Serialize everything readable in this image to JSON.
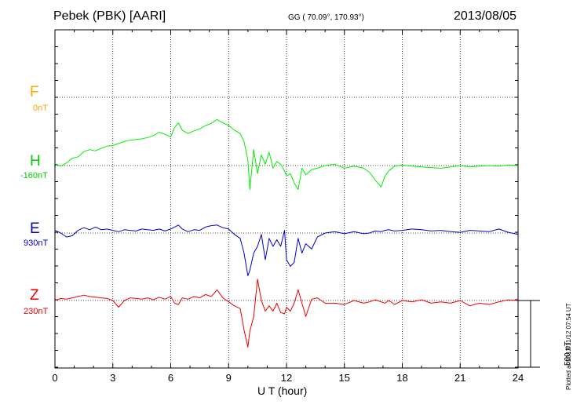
{
  "header": {
    "station": "Pebek (PBK)  [AARI]",
    "coords": "GG ( 70.09°, 170.93°)",
    "date": "2013/08/05"
  },
  "footer": {
    "plotted": "Plotted at 2013/11/12 07:54 UT",
    "scale_label": "500 nT"
  },
  "chart_data": {
    "type": "line",
    "xlabel": "U T (hour)",
    "xlim": [
      0,
      24
    ],
    "xticks": [
      0,
      3,
      6,
      9,
      12,
      15,
      18,
      21,
      24
    ],
    "grid": true,
    "scale_bar_nT": 500,
    "series": [
      {
        "name": "F",
        "baseline": "0nT",
        "color": "#ffa500",
        "values": []
      },
      {
        "name": "H",
        "baseline": "-160nT",
        "color": "#00ee00",
        "x": [
          0,
          0.3,
          0.6,
          0.9,
          1.2,
          1.5,
          1.8,
          2.1,
          2.4,
          2.7,
          3,
          3.3,
          3.6,
          3.9,
          4.2,
          4.5,
          4.8,
          5.1,
          5.4,
          5.7,
          6,
          6.2,
          6.4,
          6.6,
          6.9,
          7.2,
          7.5,
          7.8,
          8.1,
          8.4,
          8.7,
          9,
          9.3,
          9.6,
          9.8,
          10,
          10.1,
          10.3,
          10.5,
          10.7,
          10.9,
          11.1,
          11.3,
          11.5,
          11.7,
          11.9,
          12,
          12.2,
          12.4,
          12.6,
          12.8,
          13,
          13.3,
          13.6,
          14,
          14.5,
          15,
          15.5,
          16,
          16.3,
          16.6,
          16.9,
          17.1,
          17.3,
          17.6,
          18,
          18.5,
          19,
          19.5,
          20,
          20.5,
          21,
          21.5,
          22,
          22.5,
          23,
          23.5,
          24
        ],
        "values": [
          15,
          -5,
          20,
          55,
          65,
          105,
          120,
          110,
          130,
          145,
          150,
          165,
          180,
          190,
          195,
          200,
          210,
          225,
          250,
          235,
          215,
          285,
          320,
          265,
          240,
          260,
          275,
          300,
          315,
          345,
          320,
          300,
          265,
          240,
          180,
          40,
          -180,
          120,
          -60,
          80,
          10,
          100,
          -20,
          30,
          10,
          -40,
          -80,
          -60,
          -130,
          -180,
          -20,
          -70,
          -30,
          -20,
          0,
          10,
          -20,
          -5,
          -20,
          -50,
          -110,
          -160,
          -80,
          -40,
          -5,
          5,
          -5,
          -10,
          -15,
          -20,
          -10,
          0,
          -10,
          -5,
          0,
          -5,
          5,
          0
        ]
      },
      {
        "name": "E",
        "baseline": "930nT",
        "color": "#0000cc",
        "x": [
          0,
          0.3,
          0.6,
          0.9,
          1.2,
          1.5,
          1.8,
          2.1,
          2.4,
          2.7,
          3,
          3.3,
          3.6,
          3.9,
          4.2,
          4.5,
          4.8,
          5.1,
          5.4,
          5.7,
          6,
          6.2,
          6.4,
          6.6,
          6.9,
          7.2,
          7.5,
          7.8,
          8.1,
          8.4,
          8.7,
          9,
          9.3,
          9.6,
          9.8,
          10,
          10.1,
          10.3,
          10.5,
          10.7,
          10.9,
          11.1,
          11.3,
          11.5,
          11.7,
          11.9,
          12,
          12.2,
          12.4,
          12.6,
          12.8,
          13,
          13.3,
          13.6,
          14,
          14.5,
          15,
          15.5,
          16,
          16.3,
          16.6,
          16.9,
          17.1,
          17.3,
          17.6,
          18,
          18.5,
          19,
          19.5,
          20,
          20.5,
          21,
          21.5,
          22,
          22.5,
          23,
          23.5,
          24
        ],
        "values": [
          20,
          0,
          -30,
          -20,
          20,
          40,
          25,
          45,
          25,
          30,
          20,
          10,
          25,
          20,
          15,
          30,
          25,
          20,
          30,
          15,
          30,
          45,
          60,
          30,
          10,
          25,
          20,
          45,
          55,
          60,
          40,
          30,
          -10,
          -40,
          -150,
          -320,
          -280,
          -150,
          -100,
          -10,
          -200,
          -40,
          -100,
          -50,
          -100,
          20,
          -200,
          -250,
          -220,
          -40,
          -150,
          -80,
          -120,
          -30,
          0,
          10,
          -5,
          10,
          -5,
          0,
          15,
          10,
          20,
          25,
          15,
          20,
          30,
          25,
          15,
          20,
          10,
          5,
          20,
          15,
          10,
          30,
          5,
          -10
        ]
      },
      {
        "name": "Z",
        "baseline": "230nT",
        "color": "#ee0000",
        "x": [
          0,
          0.3,
          0.6,
          0.9,
          1.2,
          1.5,
          1.8,
          2.1,
          2.4,
          2.7,
          3,
          3.3,
          3.6,
          3.9,
          4.2,
          4.5,
          4.8,
          5.1,
          5.4,
          5.7,
          6,
          6.2,
          6.4,
          6.6,
          6.9,
          7.2,
          7.5,
          7.8,
          8.1,
          8.4,
          8.7,
          9,
          9.3,
          9.6,
          9.8,
          10,
          10.1,
          10.3,
          10.5,
          10.7,
          10.9,
          11.1,
          11.3,
          11.5,
          11.7,
          11.9,
          12,
          12.2,
          12.4,
          12.6,
          12.8,
          13,
          13.3,
          13.6,
          14,
          14.5,
          15,
          15.5,
          16,
          16.3,
          16.6,
          16.9,
          17.1,
          17.3,
          17.6,
          18,
          18.5,
          19,
          19.5,
          20,
          20.5,
          21,
          21.5,
          22,
          22.5,
          23,
          23.5,
          24
        ],
        "values": [
          0,
          15,
          10,
          20,
          30,
          40,
          30,
          25,
          20,
          15,
          0,
          -50,
          0,
          20,
          15,
          10,
          20,
          5,
          25,
          10,
          30,
          -20,
          -30,
          20,
          10,
          30,
          20,
          45,
          30,
          80,
          20,
          -10,
          -40,
          -60,
          -220,
          -350,
          -230,
          -120,
          160,
          0,
          -80,
          -40,
          -80,
          -20,
          -90,
          -100,
          -50,
          -80,
          -20,
          80,
          -20,
          -120,
          10,
          20,
          -20,
          -20,
          -30,
          0,
          -20,
          -10,
          5,
          -10,
          -20,
          0,
          -30,
          0,
          -10,
          5,
          -20,
          -10,
          -20,
          0,
          -40,
          -20,
          -30,
          -10,
          5,
          0
        ]
      }
    ]
  }
}
